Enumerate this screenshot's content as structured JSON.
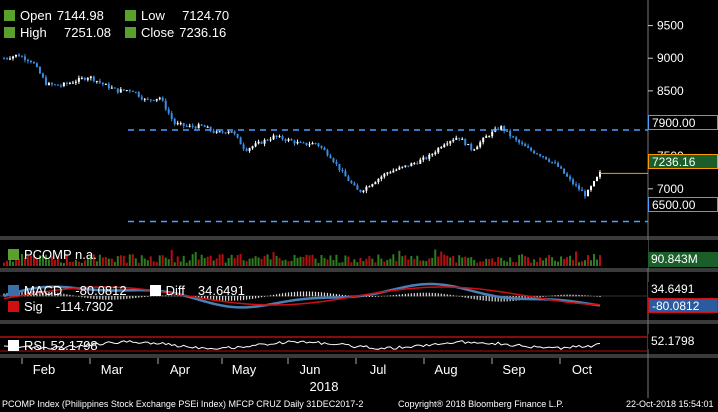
{
  "ohlc": {
    "open_label": "Open",
    "open": "7144.98",
    "high_label": "High",
    "high": "7251.08",
    "low_label": "Low",
    "low": "7124.70",
    "close_label": "Close",
    "close": "7236.16"
  },
  "colors": {
    "background": "#000000",
    "up_candle": "#ffffff",
    "down_candle": "#3a8ee6",
    "resistance_line": "#4aa0ff",
    "last_price_tag": "#ff9900",
    "legend_swatch": "#5aa02c",
    "volume_up": "#2e7d1f",
    "volume_down": "#b01010",
    "macd": "#4a7fb5",
    "signal": "#d01010",
    "rsi": "#ffffff",
    "rsi_band": "#b01010"
  },
  "volume_panel": {
    "label": "PCOMP n.a.",
    "last_value": "90.843M"
  },
  "macd_panel": {
    "macd_label": "MACD",
    "macd_value": "-80.0812",
    "diff_label": "Diff",
    "diff_value": "34.6491",
    "sig_label": "Sig",
    "sig_value": "-114.7302",
    "tag_diff": "34.6491",
    "tag_macd": "-80.0812"
  },
  "rsi_panel": {
    "label": "RSI",
    "value": "52.1798",
    "tag_value": "52.1798"
  },
  "price_tags": {
    "upper": "7900.00",
    "last": "7236.16",
    "lower": "6500.00"
  },
  "x_labels": [
    "Feb",
    "Mar",
    "Apr",
    "May",
    "Jun",
    "Jul",
    "Aug",
    "Sep",
    "Oct"
  ],
  "year_label": "2018",
  "footer": {
    "left": "PCOMP Index (Philippines Stock Exchange PSEi Index) MFCP CRUZ  Daily 31DEC2017-2",
    "center": "Copyright® 2018 Bloomberg Finance L.P.",
    "right": "22-Oct-2018 15:54:01"
  },
  "chart_data": {
    "type": "line",
    "title": "",
    "yticks": [
      7000,
      7500,
      8000,
      8500,
      9000,
      9500
    ],
    "ylim": [
      6400,
      9800
    ],
    "horizontal_lines": [
      7900,
      6500
    ],
    "last_price": 7236.16,
    "x": [
      "2018-01-03",
      "2018-01-10",
      "2018-01-17",
      "2018-01-24",
      "2018-01-31",
      "2018-02-07",
      "2018-02-14",
      "2018-02-21",
      "2018-02-28",
      "2018-03-07",
      "2018-03-14",
      "2018-03-21",
      "2018-03-28",
      "2018-04-04",
      "2018-04-11",
      "2018-04-18",
      "2018-04-25",
      "2018-05-02",
      "2018-05-09",
      "2018-05-16",
      "2018-05-23",
      "2018-05-30",
      "2018-06-06",
      "2018-06-13",
      "2018-06-20",
      "2018-06-27",
      "2018-07-04",
      "2018-07-11",
      "2018-07-18",
      "2018-07-25",
      "2018-08-01",
      "2018-08-08",
      "2018-08-15",
      "2018-08-22",
      "2018-08-29",
      "2018-09-05",
      "2018-09-12",
      "2018-09-19",
      "2018-09-26",
      "2018-10-03",
      "2018-10-10",
      "2018-10-17",
      "2018-10-22"
    ],
    "series": [
      {
        "values": [
          9000,
          9050,
          8950,
          8600,
          8580,
          8650,
          8720,
          8600,
          8500,
          8520,
          8350,
          8400,
          8000,
          7950,
          7960,
          7850,
          7900,
          7600,
          7700,
          7800,
          7750,
          7680,
          7700,
          7500,
          7200,
          6950,
          7100,
          7250,
          7320,
          7400,
          7500,
          7700,
          7800,
          7600,
          7800,
          7950,
          7750,
          7600,
          7500,
          7350,
          7100,
          6900,
          7236.16
        ]
      }
    ],
    "volume_last": "90.843M",
    "macd_last": -80.0812,
    "signal_last": -114.7302,
    "diff_last": 34.6491,
    "rsi_last": 52.1798
  }
}
